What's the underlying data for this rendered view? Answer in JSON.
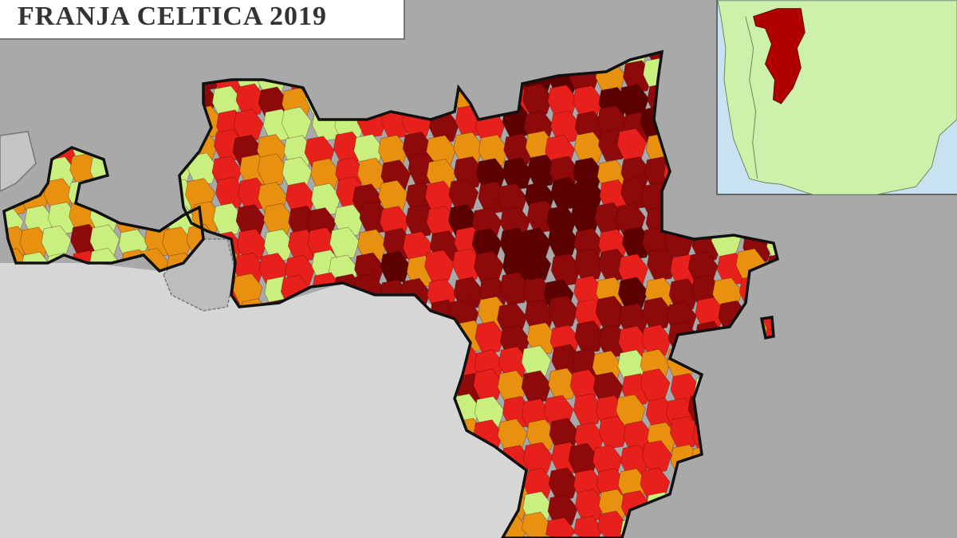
{
  "title": "FRANJA CELTICA 2019",
  "legend_colors": {
    "very_high": "#5c0000",
    "high": "#8e0a0a",
    "medium_high": "#e8201c",
    "medium": "#e8900f",
    "low": "#c9f07e"
  },
  "background_colors": {
    "outside_region": "#a9a9a9",
    "neighbour_country": "#d6d6d6",
    "inset_sea": "#c9e2f2",
    "inset_land": "#cdf0aa",
    "inset_highlight": "#b00000"
  }
}
